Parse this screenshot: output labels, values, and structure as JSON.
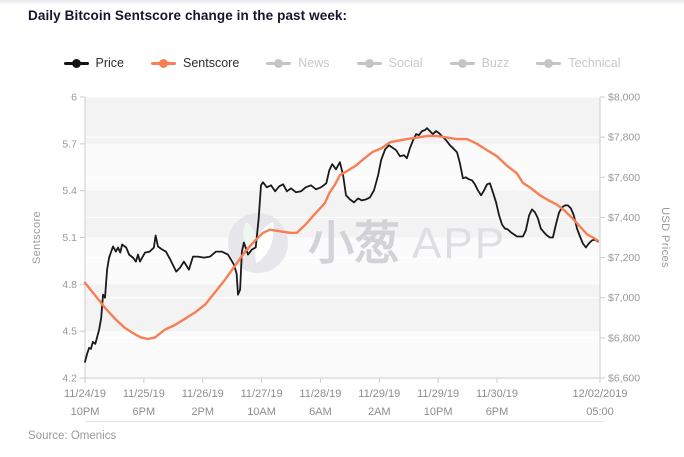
{
  "page": {
    "title": "Daily Bitcoin Sentscore change in the past week:",
    "source": "Source: Omenics",
    "watermark": {
      "brand": "小葱",
      "suffix": "APP",
      "circle_color": "#e2e2e7",
      "text_color": "#d3d3d7",
      "suffix_color": "#dfdfe3"
    }
  },
  "legend": [
    {
      "label": "Price",
      "color": "#141414",
      "active": true
    },
    {
      "label": "Sentscore",
      "color": "#f87f54",
      "active": true
    },
    {
      "label": "News",
      "color": "#c5c5c5",
      "active": false
    },
    {
      "label": "Social",
      "color": "#c5c5c5",
      "active": false
    },
    {
      "label": "Buzz",
      "color": "#c5c5c5",
      "active": false
    },
    {
      "label": "Technical",
      "color": "#c5c5c5",
      "active": false
    }
  ],
  "chart_data": {
    "type": "line",
    "title": "Daily Bitcoin Sentscore change in the past week",
    "x_axis": {
      "unit": "hours from 11/24/19 10PM",
      "range_hours": [
        0,
        175
      ],
      "ticks": [
        {
          "t": 0,
          "date": "11/24/19",
          "time": "10PM"
        },
        {
          "t": 20,
          "date": "11/25/19",
          "time": "6PM"
        },
        {
          "t": 40,
          "date": "11/26/19",
          "time": "2PM"
        },
        {
          "t": 60,
          "date": "11/27/19",
          "time": "10AM"
        },
        {
          "t": 80,
          "date": "11/28/19",
          "time": "6AM"
        },
        {
          "t": 100,
          "date": "11/29/19",
          "time": "2AM"
        },
        {
          "t": 120,
          "date": "11/29/19",
          "time": "10PM"
        },
        {
          "t": 140,
          "date": "11/30/19",
          "time": "6PM"
        },
        {
          "t": 175,
          "date": "12/02/2019",
          "time": "05:00"
        }
      ]
    },
    "y_left": {
      "label": "Sentscore",
      "range": [
        4.2,
        6.0
      ],
      "ticks": [
        6,
        5.7,
        5.4,
        5.1,
        4.8,
        4.5,
        4.2
      ]
    },
    "y_right": {
      "label": "USD Prices",
      "range": [
        6600,
        8000
      ],
      "ticks": [
        {
          "value": 8000,
          "label": "$8,000"
        },
        {
          "value": 7800,
          "label": "$7,800"
        },
        {
          "value": 7600,
          "label": "$7,600"
        },
        {
          "value": 7400,
          "label": "$7,400"
        },
        {
          "value": 7200,
          "label": "$7,200"
        },
        {
          "value": 7000,
          "label": "$7,000"
        },
        {
          "value": 6800,
          "label": "$6,800"
        },
        {
          "value": 6600,
          "label": "$6,600"
        }
      ]
    },
    "style": {
      "band_colors": [
        "#f3f3f3",
        "#fbfbfb"
      ],
      "axis_color": "#cccccc",
      "grid_white": "#ffffff"
    },
    "series": [
      {
        "name": "Price",
        "axis": "right",
        "color": "#1a1a1a",
        "width": 1.8,
        "points": [
          [
            0,
            6680
          ],
          [
            0.7,
            6720
          ],
          [
            1.4,
            6750
          ],
          [
            2,
            6745
          ],
          [
            2.7,
            6780
          ],
          [
            3.5,
            6770
          ],
          [
            4.8,
            6840
          ],
          [
            5.5,
            6900
          ],
          [
            6.1,
            7015
          ],
          [
            6.8,
            7000
          ],
          [
            7.5,
            7140
          ],
          [
            8.2,
            7200
          ],
          [
            9.5,
            7255
          ],
          [
            10.5,
            7230
          ],
          [
            11.2,
            7250
          ],
          [
            12,
            7225
          ],
          [
            12.6,
            7265
          ],
          [
            14,
            7250
          ],
          [
            15,
            7215
          ],
          [
            16.3,
            7200
          ],
          [
            17.3,
            7180
          ],
          [
            18,
            7215
          ],
          [
            18.7,
            7180
          ],
          [
            20.4,
            7225
          ],
          [
            22,
            7230
          ],
          [
            23.4,
            7250
          ],
          [
            24,
            7310
          ],
          [
            24.8,
            7255
          ],
          [
            26.2,
            7240
          ],
          [
            27.5,
            7230
          ],
          [
            29,
            7190
          ],
          [
            31,
            7130
          ],
          [
            32.3,
            7150
          ],
          [
            33.6,
            7180
          ],
          [
            35.3,
            7140
          ],
          [
            36.7,
            7205
          ],
          [
            38.4,
            7205
          ],
          [
            40.4,
            7200
          ],
          [
            42.5,
            7205
          ],
          [
            44.5,
            7230
          ],
          [
            46.5,
            7230
          ],
          [
            48.6,
            7215
          ],
          [
            50.6,
            7165
          ],
          [
            51.5,
            7120
          ],
          [
            52,
            7015
          ],
          [
            52.7,
            7040
          ],
          [
            53.3,
            7230
          ],
          [
            54,
            7275
          ],
          [
            55.4,
            7215
          ],
          [
            56.7,
            7240
          ],
          [
            58,
            7250
          ],
          [
            59,
            7390
          ],
          [
            59.8,
            7560
          ],
          [
            60.5,
            7575
          ],
          [
            61.8,
            7550
          ],
          [
            63.2,
            7560
          ],
          [
            64.6,
            7530
          ],
          [
            66,
            7555
          ],
          [
            67.3,
            7565
          ],
          [
            68.6,
            7530
          ],
          [
            70,
            7545
          ],
          [
            71.7,
            7525
          ],
          [
            73.4,
            7530
          ],
          [
            75,
            7550
          ],
          [
            76.8,
            7560
          ],
          [
            78.5,
            7540
          ],
          [
            80.2,
            7550
          ],
          [
            82,
            7570
          ],
          [
            83,
            7635
          ],
          [
            84,
            7665
          ],
          [
            85.3,
            7640
          ],
          [
            86.6,
            7675
          ],
          [
            87.7,
            7610
          ],
          [
            88.7,
            7510
          ],
          [
            90,
            7490
          ],
          [
            91.4,
            7475
          ],
          [
            92.8,
            7495
          ],
          [
            94.1,
            7485
          ],
          [
            95.5,
            7490
          ],
          [
            96.8,
            7500
          ],
          [
            98.2,
            7535
          ],
          [
            99.6,
            7610
          ],
          [
            100.6,
            7685
          ],
          [
            102,
            7740
          ],
          [
            103.3,
            7760
          ],
          [
            104.3,
            7750
          ],
          [
            105.7,
            7735
          ],
          [
            107,
            7705
          ],
          [
            108.4,
            7710
          ],
          [
            109.4,
            7695
          ],
          [
            110.4,
            7745
          ],
          [
            111.5,
            7785
          ],
          [
            112.5,
            7815
          ],
          [
            113.5,
            7810
          ],
          [
            114.5,
            7830
          ],
          [
            115.5,
            7835
          ],
          [
            116.2,
            7845
          ],
          [
            117.2,
            7830
          ],
          [
            118.2,
            7815
          ],
          [
            119.3,
            7830
          ],
          [
            120.3,
            7820
          ],
          [
            121.3,
            7805
          ],
          [
            122.7,
            7785
          ],
          [
            124,
            7760
          ],
          [
            125.4,
            7740
          ],
          [
            126.4,
            7725
          ],
          [
            127.4,
            7670
          ],
          [
            128.4,
            7595
          ],
          [
            129.4,
            7600
          ],
          [
            130.5,
            7590
          ],
          [
            131.5,
            7585
          ],
          [
            132.5,
            7565
          ],
          [
            133.5,
            7535
          ],
          [
            134.6,
            7510
          ],
          [
            135.6,
            7535
          ],
          [
            136.6,
            7565
          ],
          [
            137.6,
            7570
          ],
          [
            138.6,
            7525
          ],
          [
            139.7,
            7475
          ],
          [
            140.7,
            7410
          ],
          [
            141.7,
            7365
          ],
          [
            142.7,
            7345
          ],
          [
            143.7,
            7340
          ],
          [
            144.8,
            7325
          ],
          [
            145.8,
            7315
          ],
          [
            146.8,
            7305
          ],
          [
            148.8,
            7305
          ],
          [
            149.8,
            7335
          ],
          [
            150.9,
            7410
          ],
          [
            151.9,
            7440
          ],
          [
            152.9,
            7425
          ],
          [
            153.9,
            7395
          ],
          [
            154.9,
            7345
          ],
          [
            156,
            7325
          ],
          [
            157,
            7310
          ],
          [
            158,
            7300
          ],
          [
            159,
            7300
          ],
          [
            160,
            7365
          ],
          [
            161.1,
            7425
          ],
          [
            162.1,
            7450
          ],
          [
            163.1,
            7460
          ],
          [
            164.1,
            7460
          ],
          [
            165.1,
            7445
          ],
          [
            166.1,
            7410
          ],
          [
            167.2,
            7345
          ],
          [
            168.2,
            7305
          ],
          [
            169.2,
            7270
          ],
          [
            170.2,
            7250
          ],
          [
            171.2,
            7270
          ],
          [
            172.2,
            7285
          ],
          [
            173.3,
            7290
          ],
          [
            174.3,
            7280
          ]
        ]
      },
      {
        "name": "Sentscore",
        "axis": "left",
        "color": "#f87f54",
        "width": 2.4,
        "points": [
          [
            0,
            4.81
          ],
          [
            3.4,
            4.73
          ],
          [
            6.8,
            4.65
          ],
          [
            10.2,
            4.58
          ],
          [
            13.6,
            4.52
          ],
          [
            17,
            4.48
          ],
          [
            19,
            4.46
          ],
          [
            21.4,
            4.45
          ],
          [
            23.8,
            4.46
          ],
          [
            27.2,
            4.51
          ],
          [
            30.6,
            4.54
          ],
          [
            34,
            4.58
          ],
          [
            37.4,
            4.62
          ],
          [
            40.8,
            4.67
          ],
          [
            44.2,
            4.75
          ],
          [
            47.6,
            4.83
          ],
          [
            51,
            4.92
          ],
          [
            54.4,
            5.01
          ],
          [
            57.8,
            5.08
          ],
          [
            60.5,
            5.13
          ],
          [
            62.9,
            5.15
          ],
          [
            66.3,
            5.14
          ],
          [
            69.7,
            5.13
          ],
          [
            72,
            5.13
          ],
          [
            74.8,
            5.18
          ],
          [
            78.1,
            5.25
          ],
          [
            81.5,
            5.32
          ],
          [
            83.2,
            5.39
          ],
          [
            85,
            5.44
          ],
          [
            86.6,
            5.5
          ],
          [
            89.4,
            5.53
          ],
          [
            92,
            5.56
          ],
          [
            95.1,
            5.61
          ],
          [
            97.9,
            5.65
          ],
          [
            100.6,
            5.67
          ],
          [
            103.6,
            5.71
          ],
          [
            106.4,
            5.72
          ],
          [
            109.4,
            5.73
          ],
          [
            112.8,
            5.74
          ],
          [
            116.2,
            5.75
          ],
          [
            119.6,
            5.75
          ],
          [
            123,
            5.74
          ],
          [
            126.4,
            5.73
          ],
          [
            129.8,
            5.73
          ],
          [
            133.2,
            5.7
          ],
          [
            136.6,
            5.66
          ],
          [
            140,
            5.62
          ],
          [
            143.4,
            5.56
          ],
          [
            146.8,
            5.51
          ],
          [
            148.8,
            5.45
          ],
          [
            151.2,
            5.42
          ],
          [
            154.6,
            5.37
          ],
          [
            157.3,
            5.34
          ],
          [
            160.4,
            5.31
          ],
          [
            163.1,
            5.27
          ],
          [
            165.8,
            5.22
          ],
          [
            168.2,
            5.17
          ],
          [
            170.6,
            5.12
          ],
          [
            172.6,
            5.1
          ],
          [
            174.3,
            5.08
          ]
        ]
      }
    ]
  }
}
